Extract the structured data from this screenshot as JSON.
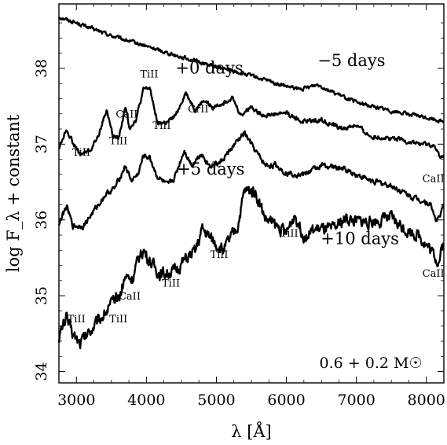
{
  "chart_data": {
    "type": "line",
    "xlabel": "λ [Å]",
    "ylabel": "log F_λ + constant",
    "xlim": [
      2750,
      8250
    ],
    "ylim": [
      33.85,
      38.85
    ],
    "x_ticks": [
      "3000",
      "4000",
      "5000",
      "6000",
      "7000",
      "8000"
    ],
    "y_ticks": [
      "34",
      "35",
      "36",
      "37",
      "38"
    ],
    "mass_label": "0.6 + 0.2 M☉",
    "series": [
      {
        "name": "−5 days",
        "noise": 0.02,
        "points": [
          [
            2750,
            38.68
          ],
          [
            3000,
            38.6
          ],
          [
            3500,
            38.43
          ],
          [
            4000,
            38.29
          ],
          [
            4500,
            38.15
          ],
          [
            5000,
            38.02
          ],
          [
            5500,
            37.9
          ],
          [
            6000,
            37.76
          ],
          [
            6200,
            37.72
          ],
          [
            6450,
            37.79
          ],
          [
            6700,
            37.67
          ],
          [
            7000,
            37.55
          ],
          [
            7500,
            37.44
          ],
          [
            8000,
            37.35
          ],
          [
            8250,
            37.3
          ]
        ]
      },
      {
        "name": "+0 days",
        "noise": 0.025,
        "points": [
          [
            2750,
            36.95
          ],
          [
            2860,
            37.2
          ],
          [
            2950,
            37.02
          ],
          [
            3050,
            36.86
          ],
          [
            3200,
            36.92
          ],
          [
            3300,
            37.08
          ],
          [
            3430,
            37.45
          ],
          [
            3520,
            37.12
          ],
          [
            3600,
            37.08
          ],
          [
            3700,
            37.48
          ],
          [
            3760,
            37.22
          ],
          [
            3850,
            37.32
          ],
          [
            3960,
            37.72
          ],
          [
            4050,
            37.74
          ],
          [
            4160,
            37.28
          ],
          [
            4300,
            37.28
          ],
          [
            4420,
            37.38
          ],
          [
            4560,
            37.68
          ],
          [
            4700,
            37.45
          ],
          [
            4820,
            37.58
          ],
          [
            4950,
            37.48
          ],
          [
            5100,
            37.55
          ],
          [
            5220,
            37.62
          ],
          [
            5350,
            37.38
          ],
          [
            5500,
            37.5
          ],
          [
            5600,
            37.42
          ],
          [
            5700,
            37.38
          ],
          [
            6000,
            37.42
          ],
          [
            6200,
            37.3
          ],
          [
            6500,
            37.32
          ],
          [
            6800,
            37.2
          ],
          [
            7000,
            37.25
          ],
          [
            7200,
            37.1
          ],
          [
            7500,
            37.08
          ],
          [
            7800,
            37.02
          ],
          [
            8100,
            36.98
          ],
          [
            8200,
            36.82
          ],
          [
            8250,
            36.88
          ]
        ]
      },
      {
        "name": "+5 days",
        "noise": 0.03,
        "points": [
          [
            2750,
            35.95
          ],
          [
            2860,
            36.18
          ],
          [
            2950,
            35.92
          ],
          [
            3100,
            35.92
          ],
          [
            3250,
            36.12
          ],
          [
            3420,
            36.34
          ],
          [
            3550,
            36.42
          ],
          [
            3700,
            36.72
          ],
          [
            3780,
            36.52
          ],
          [
            3880,
            36.6
          ],
          [
            3960,
            36.85
          ],
          [
            4050,
            36.82
          ],
          [
            4150,
            36.58
          ],
          [
            4300,
            36.45
          ],
          [
            4400,
            36.55
          ],
          [
            4540,
            36.92
          ],
          [
            4650,
            36.72
          ],
          [
            4780,
            36.88
          ],
          [
            4900,
            36.72
          ],
          [
            5050,
            36.75
          ],
          [
            5250,
            36.98
          ],
          [
            5400,
            37.15
          ],
          [
            5550,
            36.92
          ],
          [
            5700,
            36.72
          ],
          [
            5850,
            36.72
          ],
          [
            6000,
            36.62
          ],
          [
            6250,
            36.6
          ],
          [
            6500,
            36.72
          ],
          [
            6800,
            36.68
          ],
          [
            7000,
            36.6
          ],
          [
            7200,
            36.52
          ],
          [
            7500,
            36.45
          ],
          [
            7800,
            36.3
          ],
          [
            8050,
            36.22
          ],
          [
            8150,
            35.98
          ],
          [
            8250,
            36.18
          ]
        ]
      },
      {
        "name": "+10 days",
        "noise": 0.07,
        "points": [
          [
            2750,
            34.45
          ],
          [
            2850,
            34.72
          ],
          [
            2950,
            34.5
          ],
          [
            3050,
            34.38
          ],
          [
            3200,
            34.55
          ],
          [
            3350,
            34.72
          ],
          [
            3500,
            34.88
          ],
          [
            3620,
            35.0
          ],
          [
            3700,
            35.26
          ],
          [
            3800,
            35.22
          ],
          [
            3900,
            35.52
          ],
          [
            3960,
            35.6
          ],
          [
            4050,
            35.45
          ],
          [
            4200,
            35.28
          ],
          [
            4400,
            35.32
          ],
          [
            4560,
            35.48
          ],
          [
            4700,
            35.58
          ],
          [
            4800,
            35.88
          ],
          [
            4950,
            35.72
          ],
          [
            5100,
            35.6
          ],
          [
            5300,
            35.9
          ],
          [
            5400,
            36.38
          ],
          [
            5550,
            36.38
          ],
          [
            5700,
            36.02
          ],
          [
            5850,
            35.92
          ],
          [
            6000,
            35.82
          ],
          [
            6120,
            36.08
          ],
          [
            6250,
            35.8
          ],
          [
            6450,
            35.88
          ],
          [
            6650,
            35.86
          ],
          [
            6850,
            36.02
          ],
          [
            7000,
            35.98
          ],
          [
            7200,
            35.98
          ],
          [
            7500,
            36.02
          ],
          [
            7700,
            35.88
          ],
          [
            7900,
            35.8
          ],
          [
            8100,
            35.55
          ],
          [
            8180,
            35.45
          ],
          [
            8250,
            35.72
          ]
        ]
      }
    ],
    "epoch_labels": [
      {
        "text": "−5 days",
        "x": 6930,
        "y": 38.03
      },
      {
        "text": "+0 days",
        "x": 4900,
        "y": 37.93
      },
      {
        "text": "+5 days",
        "x": 4920,
        "y": 36.6
      },
      {
        "text": "+10 days",
        "x": 7050,
        "y": 35.68
      }
    ],
    "line_labels": [
      {
        "text": "TiII",
        "x": 3070,
        "y": 36.85
      },
      {
        "text": "TiII",
        "x": 3600,
        "y": 37.0
      },
      {
        "text": "CaII",
        "x": 3720,
        "y": 37.35
      },
      {
        "text": "TiII",
        "x": 4040,
        "y": 37.88
      },
      {
        "text": "TiII",
        "x": 4220,
        "y": 37.2
      },
      {
        "text": "CrII",
        "x": 4740,
        "y": 37.42
      },
      {
        "text": "TiII",
        "x": 3000,
        "y": 34.65
      },
      {
        "text": "TiII",
        "x": 3600,
        "y": 34.65
      },
      {
        "text": "CaII",
        "x": 3760,
        "y": 34.95
      },
      {
        "text": "TiII",
        "x": 4350,
        "y": 35.12
      },
      {
        "text": "TiII",
        "x": 5040,
        "y": 35.5
      },
      {
        "text": "TiII",
        "x": 6040,
        "y": 35.78
      },
      {
        "text": "CaII",
        "x": 8100,
        "y": 36.5
      },
      {
        "text": "CaII",
        "x": 8100,
        "y": 35.25
      }
    ]
  }
}
